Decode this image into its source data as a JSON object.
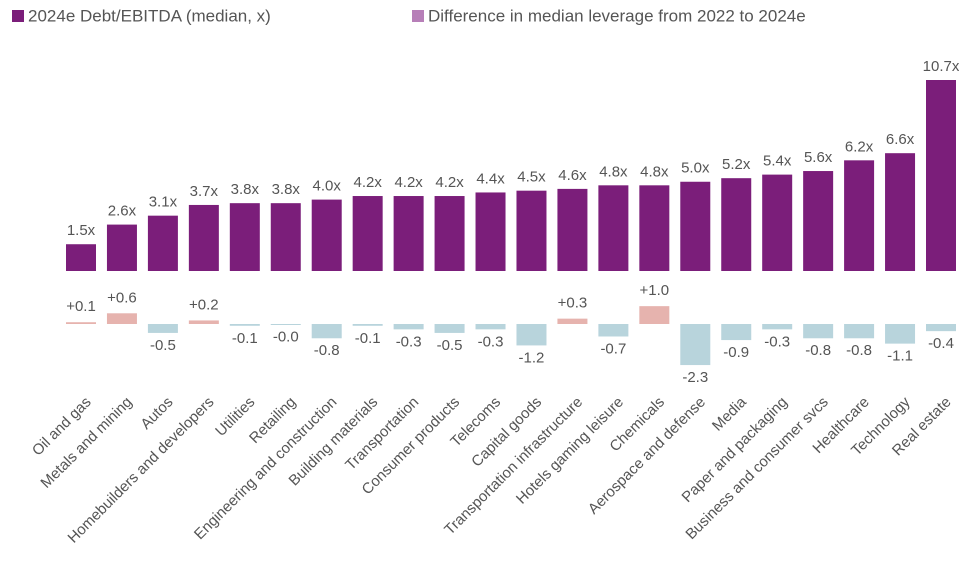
{
  "chart_data": {
    "type": "bar",
    "categories": [
      "Oil and gas",
      "Metals and mining",
      "Autos",
      "Homebuilders and developers",
      "Utilities",
      "Retailing",
      "Engineering and construction",
      "Building materials",
      "Transportation",
      "Consumer products",
      "Telecoms",
      "Capital goods",
      "Transportation infrastructure",
      "Hotels gaming leisure",
      "Chemicals",
      "Aerospace and defense",
      "Media",
      "Paper and packaging",
      "Business and consumer svcs",
      "Healthcare",
      "Technology",
      "Real estate"
    ],
    "series": [
      {
        "name": "2024e Debt/EBITDA (median, x)",
        "color": "#7b1e7a",
        "values": [
          1.5,
          2.6,
          3.1,
          3.7,
          3.8,
          3.8,
          4.0,
          4.2,
          4.2,
          4.2,
          4.4,
          4.5,
          4.6,
          4.8,
          4.8,
          5.0,
          5.2,
          5.4,
          5.6,
          6.2,
          6.6,
          10.7
        ],
        "value_labels": [
          "1.5x",
          "2.6x",
          "3.1x",
          "3.7x",
          "3.8x",
          "3.8x",
          "4.0x",
          "4.2x",
          "4.2x",
          "4.2x",
          "4.4x",
          "4.5x",
          "4.6x",
          "4.8x",
          "4.8x",
          "5.0x",
          "5.2x",
          "5.4x",
          "5.6x",
          "6.2x",
          "6.6x",
          "10.7x"
        ]
      },
      {
        "name": "Difference in median leverage from 2022 to 2024e",
        "color": "#b77fb8",
        "positive_color": "#e6b3ae",
        "negative_color": "#b8d4dc",
        "values": [
          0.1,
          0.6,
          -0.5,
          0.2,
          -0.1,
          -0.02,
          -0.8,
          -0.1,
          -0.3,
          -0.5,
          -0.3,
          -1.2,
          0.3,
          -0.7,
          1.0,
          -2.3,
          -0.9,
          -0.3,
          -0.8,
          -0.8,
          -1.1,
          -0.4
        ],
        "value_labels": [
          "+0.1",
          "+0.6",
          "-0.5",
          "+0.2",
          "-0.1",
          "-0.0",
          "-0.8",
          "-0.1",
          "-0.3",
          "-0.5",
          "-0.3",
          "-1.2",
          "+0.3",
          "-0.7",
          "+1.0",
          "-2.3",
          "-0.9",
          "-0.3",
          "-0.8",
          "-0.8",
          "-1.1",
          "-0.4"
        ]
      }
    ]
  }
}
